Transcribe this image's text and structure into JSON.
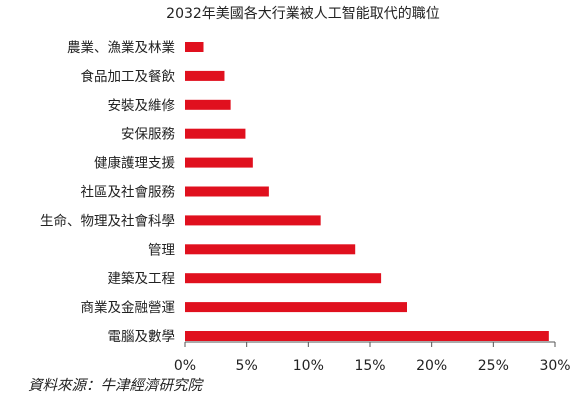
{
  "chart_data": {
    "type": "bar",
    "orientation": "horizontal",
    "title": "2032年美國各大行業被人工智能取代的職位",
    "categories": [
      "農業、漁業及林業",
      "食品加工及餐飲",
      "安裝及維修",
      "安保服務",
      "健康護理支援",
      "社區及社會服務",
      "生命、物理及社會科學",
      "管理",
      "建築及工程",
      "商業及金融營運",
      "電腦及數學"
    ],
    "values": [
      1.5,
      3.2,
      3.7,
      4.9,
      5.5,
      6.8,
      11.0,
      13.8,
      15.9,
      18.0,
      29.5
    ],
    "unit": "%",
    "xlim": [
      0,
      30
    ],
    "x_ticks": [
      0,
      5,
      10,
      15,
      20,
      25,
      30
    ],
    "x_tick_labels": [
      "0%",
      "5%",
      "10%",
      "15%",
      "20%",
      "25%",
      "30%"
    ],
    "grid": false,
    "bar_color": "#e0101e",
    "axis_color": "#555555"
  },
  "source": "資料來源：牛津經濟研究院"
}
